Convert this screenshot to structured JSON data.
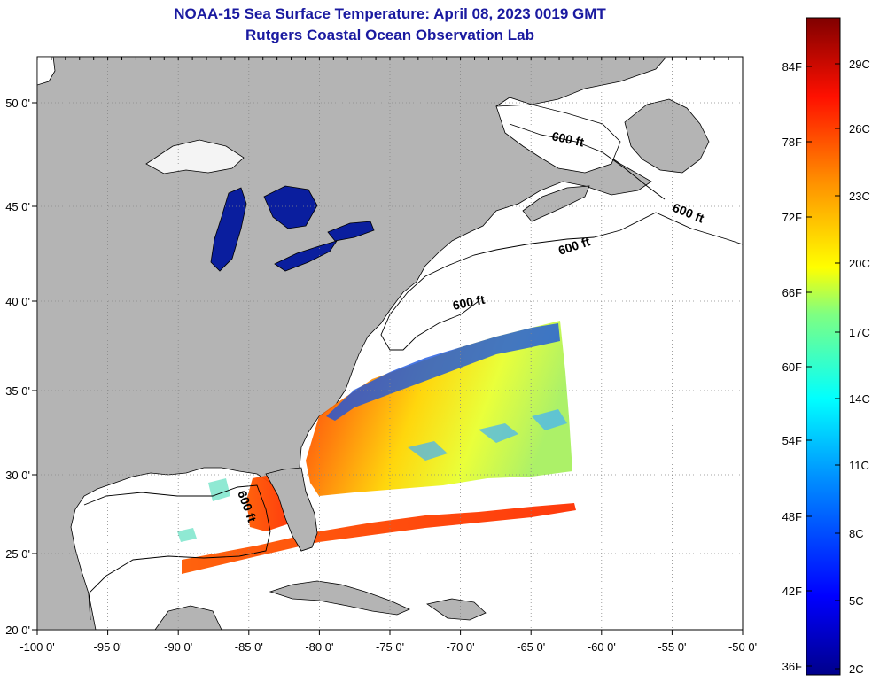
{
  "title": "NOAA-15 Sea Surface Temperature:  April 08, 2023 0019 GMT",
  "subtitle": "Rutgers Coastal Ocean Observation Lab",
  "map": {
    "lon_labels": [
      "-100 0'",
      "-95 0'",
      "-90 0'",
      "-85 0'",
      "-80 0'",
      "-75 0'",
      "-70 0'",
      "-65 0'",
      "-60 0'",
      "-55 0'",
      "-50 0'"
    ],
    "lat_labels": [
      "20 0'",
      "25 0'",
      "30 0'",
      "35 0'",
      "40 0'",
      "45 0'",
      "50 0'"
    ],
    "contour_labels": [
      "600 ft",
      "600 ft",
      "600 ft",
      "600 ft",
      "600 ft"
    ],
    "colors": {
      "land": "#b4b4b4",
      "ocean": "#ffffff",
      "lakes": "#0a1e9e",
      "coast": "#000000",
      "grid": "#888888"
    }
  },
  "colorbar": {
    "fahrenheit_labels": [
      "84F",
      "78F",
      "72F",
      "66F",
      "60F",
      "54F",
      "48F",
      "42F",
      "36F"
    ],
    "celsius_labels": [
      "29C",
      "26C",
      "23C",
      "20C",
      "17C",
      "14C",
      "11C",
      "8C",
      "5C",
      "2C"
    ],
    "colors": [
      "#00008b",
      "#0000ff",
      "#0080ff",
      "#00ffff",
      "#80ff80",
      "#ffff00",
      "#ff8000",
      "#ff0000",
      "#800000"
    ]
  }
}
